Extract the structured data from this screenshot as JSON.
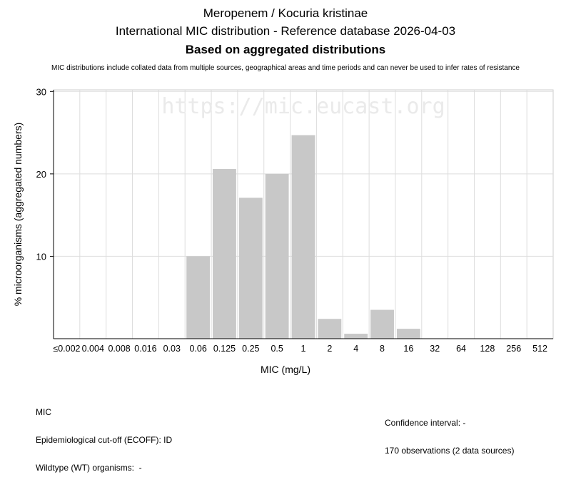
{
  "header": {
    "title": "Meropenem / Kocuria kristinae",
    "subtitle": "International MIC distribution - Reference database 2026-04-03",
    "basis": "Based on aggregated distributions",
    "note": "MIC distributions include collated data from multiple sources, geographical areas and time periods and can never be used to infer rates of resistance"
  },
  "watermark": "https://mic.eucast.org",
  "chart_data": {
    "type": "bar",
    "xlabel": "MIC (mg/L)",
    "ylabel": "% microorganisms (aggregated numbers)",
    "categories": [
      "≤0.002",
      "0.004",
      "0.008",
      "0.016",
      "0.03",
      "0.06",
      "0.125",
      "0.25",
      "0.5",
      "1",
      "2",
      "4",
      "8",
      "16",
      "32",
      "64",
      "128",
      "256",
      "512"
    ],
    "values": [
      0,
      0,
      0,
      0,
      0,
      10.0,
      20.6,
      17.1,
      20.0,
      24.7,
      2.4,
      0.6,
      3.5,
      1.2,
      0,
      0,
      0,
      0,
      0
    ],
    "yticks": [
      10,
      20,
      30
    ],
    "ylim": [
      0,
      30.2
    ],
    "grid": true,
    "bar_color": "#c8c8c8"
  },
  "footer": {
    "left_lines": [
      "MIC",
      "Epidemiological cut-off (ECOFF): ID",
      "Wildtype (WT) organisms:  -"
    ],
    "right_lines": [
      "Confidence interval: -",
      "170 observations (2 data sources)"
    ]
  }
}
